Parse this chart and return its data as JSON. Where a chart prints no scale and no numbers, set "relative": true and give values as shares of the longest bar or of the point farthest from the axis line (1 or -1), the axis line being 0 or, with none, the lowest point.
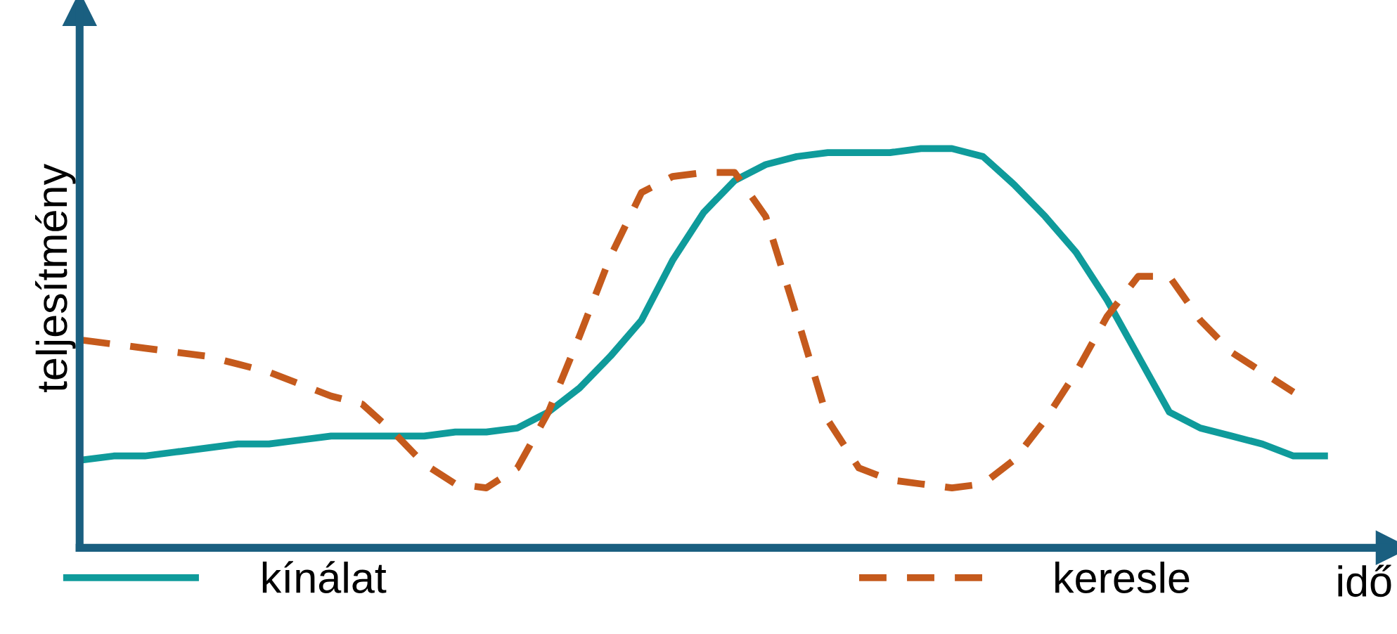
{
  "chart_data": {
    "type": "line",
    "relative": true,
    "xlabel": "idő",
    "ylabel": "teljesítmény",
    "legend": "bottom",
    "categories": [
      null,
      null,
      null,
      null,
      null,
      null,
      null,
      null,
      null,
      null,
      null,
      null,
      null,
      null,
      null,
      null,
      null,
      null,
      null,
      null,
      null,
      null,
      null,
      null,
      null,
      null,
      null,
      null,
      null,
      null,
      null,
      null,
      null,
      null,
      null,
      null,
      null,
      null,
      null,
      null,
      null
    ],
    "series": [
      {
        "name": "kínálat",
        "color": "#0f9b9b",
        "line_style": "solid",
        "values": [
          0.22,
          0.23,
          0.23,
          0.24,
          0.25,
          0.26,
          0.26,
          0.27,
          0.28,
          0.28,
          0.28,
          0.28,
          0.29,
          0.29,
          0.3,
          0.34,
          0.4,
          0.48,
          0.57,
          0.72,
          0.84,
          0.92,
          0.96,
          0.98,
          0.99,
          0.99,
          0.99,
          1.0,
          1.0,
          0.98,
          0.91,
          0.83,
          0.74,
          0.62,
          0.48,
          0.34,
          0.3,
          0.28,
          0.26,
          0.23,
          0.23
        ]
      },
      {
        "name": "keresle",
        "color": "#c55a1c",
        "line_style": "dashed",
        "values": [
          0.52,
          0.51,
          0.5,
          0.49,
          0.48,
          0.46,
          0.44,
          0.41,
          0.38,
          0.36,
          0.29,
          0.21,
          0.16,
          0.15,
          0.2,
          0.34,
          0.53,
          0.73,
          0.89,
          0.93,
          0.94,
          0.94,
          0.83,
          0.58,
          0.32,
          0.2,
          0.17,
          0.16,
          0.15,
          0.16,
          0.22,
          0.32,
          0.44,
          0.58,
          0.68,
          0.68,
          0.57,
          0.49,
          0.44,
          0.39,
          null
        ]
      }
    ]
  }
}
